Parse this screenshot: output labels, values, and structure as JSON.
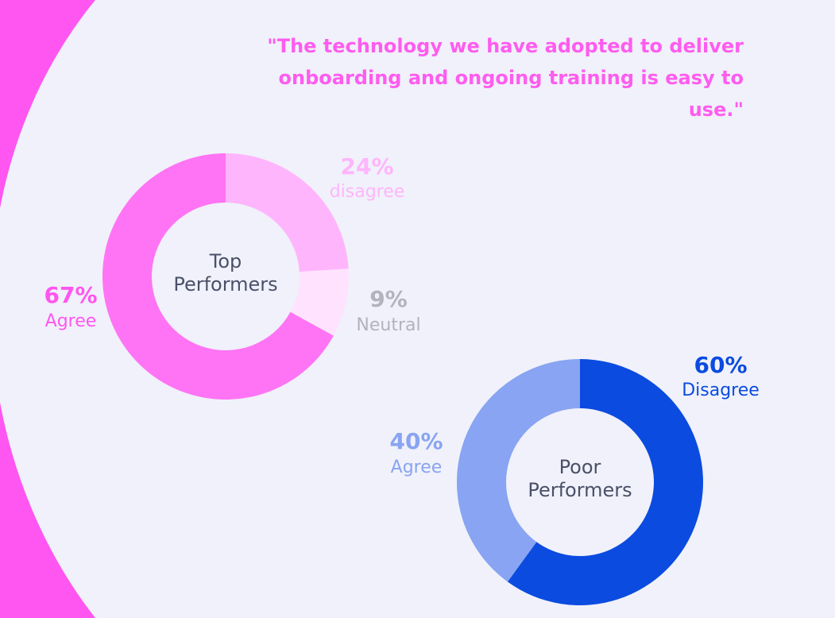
{
  "quote": {
    "line1": "\"The technology we have adopted to deliver",
    "line2": "onboarding and ongoing training is easy to use.\""
  },
  "colors": {
    "background": "#F0F1FA",
    "side_arc": "#FF56F1",
    "quote_text": "#FF5CEF",
    "center_text": "#4A5068"
  },
  "chart_data": [
    {
      "type": "pie",
      "style": "donut",
      "center_label": [
        "Top",
        "Performers"
      ],
      "slices": [
        {
          "label": "disagree",
          "value": 24,
          "value_label": "24%",
          "color": "#FFB5FC",
          "label_color": "#FFB5FC"
        },
        {
          "label": "Neutral",
          "value": 9,
          "value_label": "9%",
          "color": "#FFE3FE",
          "label_color": "#B3B3BE"
        },
        {
          "label": "Agree",
          "value": 67,
          "value_label": "67%",
          "color": "#FF74F4",
          "label_color": "#FF56EF"
        }
      ]
    },
    {
      "type": "pie",
      "style": "donut",
      "center_label": [
        "Poor",
        "Performers"
      ],
      "slices": [
        {
          "label": "Disagree",
          "value": 60,
          "value_label": "60%",
          "color": "#0B4BE0",
          "label_color": "#0B4BE0"
        },
        {
          "label": "Agree",
          "value": 40,
          "value_label": "40%",
          "color": "#88A4F2",
          "label_color": "#88A4F2"
        }
      ]
    }
  ]
}
